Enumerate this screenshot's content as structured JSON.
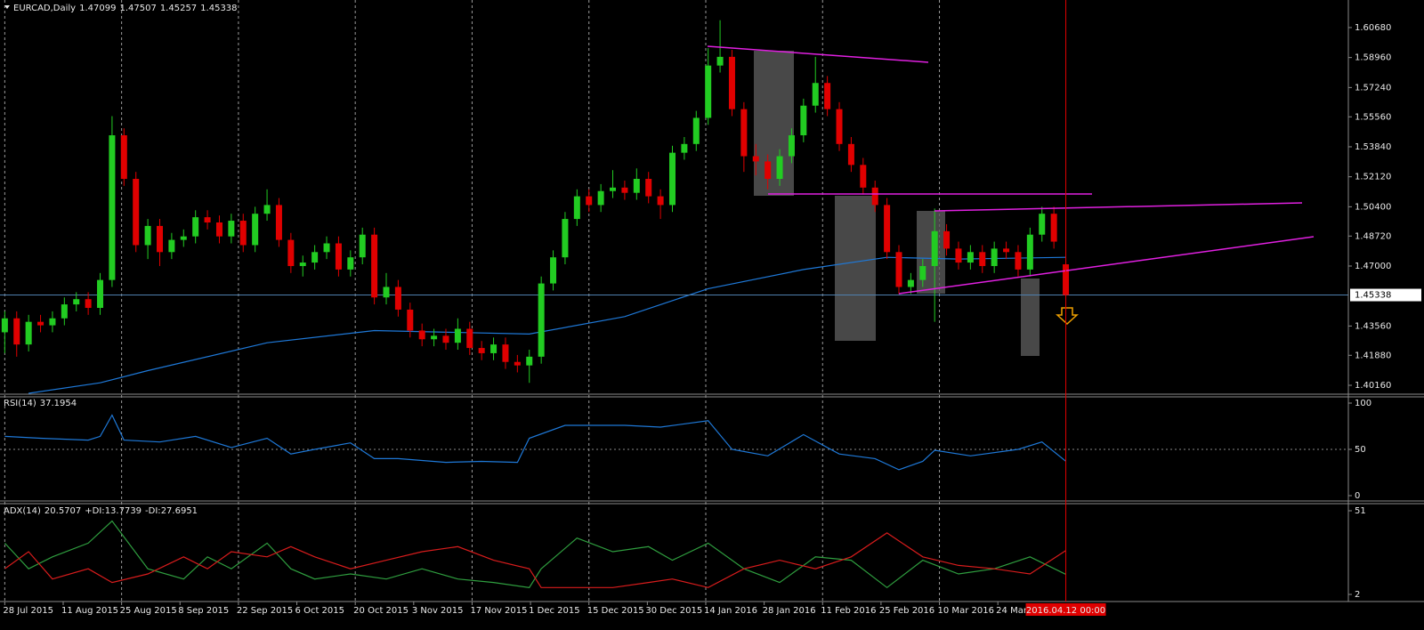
{
  "chart_data": [
    {
      "type": "candlestick",
      "title": "EURCAD,Daily",
      "open": [
        1.432,
        1.44,
        1.425,
        1.438,
        1.436,
        1.44,
        1.448,
        1.451,
        1.446,
        1.462,
        1.545,
        1.52,
        1.482,
        1.493,
        1.478,
        1.485,
        1.487,
        1.498,
        1.495,
        1.487,
        1.496,
        1.482,
        1.5,
        1.505,
        1.485,
        1.47,
        1.472,
        1.478,
        1.483,
        1.468,
        1.475,
        1.488,
        1.452,
        1.458,
        1.445,
        1.433,
        1.428,
        1.43,
        1.426,
        1.434,
        1.423,
        1.42,
        1.425,
        1.415,
        1.413,
        1.418,
        1.46,
        1.475,
        1.497,
        1.51,
        1.505,
        1.513,
        1.515,
        1.512,
        1.52,
        1.51,
        1.505,
        1.535,
        1.54,
        1.555,
        1.585,
        1.59,
        1.56,
        1.533,
        1.53,
        1.52,
        1.533,
        1.545,
        1.562,
        1.575,
        1.56,
        1.54,
        1.528,
        1.515,
        1.505,
        1.478,
        1.458,
        1.462,
        1.47,
        1.49,
        1.48,
        1.472,
        1.478,
        1.47,
        1.48,
        1.478,
        1.468,
        1.488,
        1.5,
        1.47099
      ],
      "high": [
        1.444,
        1.444,
        1.442,
        1.442,
        1.444,
        1.452,
        1.455,
        1.455,
        1.466,
        1.556,
        1.549,
        1.524,
        1.497,
        1.497,
        1.489,
        1.491,
        1.502,
        1.502,
        1.499,
        1.5,
        1.5,
        1.504,
        1.514,
        1.509,
        1.489,
        1.476,
        1.482,
        1.487,
        1.487,
        1.479,
        1.492,
        1.492,
        1.466,
        1.462,
        1.449,
        1.437,
        1.434,
        1.434,
        1.44,
        1.438,
        1.427,
        1.429,
        1.429,
        1.419,
        1.422,
        1.464,
        1.479,
        1.501,
        1.514,
        1.514,
        1.517,
        1.525,
        1.519,
        1.526,
        1.524,
        1.514,
        1.539,
        1.544,
        1.559,
        1.595,
        1.611,
        1.594,
        1.564,
        1.54,
        1.534,
        1.537,
        1.549,
        1.566,
        1.59,
        1.579,
        1.564,
        1.544,
        1.532,
        1.519,
        1.509,
        1.482,
        1.466,
        1.474,
        1.503,
        1.494,
        1.484,
        1.482,
        1.482,
        1.484,
        1.484,
        1.482,
        1.492,
        1.504,
        1.504,
        1.47507
      ],
      "low": [
        1.42,
        1.418,
        1.421,
        1.432,
        1.432,
        1.436,
        1.444,
        1.442,
        1.442,
        1.458,
        1.516,
        1.478,
        1.474,
        1.47,
        1.474,
        1.481,
        1.483,
        1.491,
        1.483,
        1.483,
        1.478,
        1.478,
        1.496,
        1.481,
        1.466,
        1.464,
        1.468,
        1.474,
        1.464,
        1.464,
        1.471,
        1.448,
        1.448,
        1.441,
        1.429,
        1.424,
        1.424,
        1.422,
        1.422,
        1.419,
        1.416,
        1.416,
        1.411,
        1.409,
        1.403,
        1.414,
        1.456,
        1.471,
        1.493,
        1.501,
        1.501,
        1.509,
        1.508,
        1.508,
        1.506,
        1.497,
        1.501,
        1.531,
        1.536,
        1.551,
        1.581,
        1.556,
        1.524,
        1.522,
        1.514,
        1.516,
        1.529,
        1.541,
        1.558,
        1.556,
        1.536,
        1.524,
        1.511,
        1.501,
        1.474,
        1.454,
        1.454,
        1.458,
        1.438,
        1.476,
        1.468,
        1.468,
        1.466,
        1.466,
        1.474,
        1.464,
        1.464,
        1.484,
        1.48,
        1.45257
      ],
      "close": [
        1.44,
        1.425,
        1.438,
        1.436,
        1.44,
        1.448,
        1.451,
        1.446,
        1.462,
        1.545,
        1.52,
        1.482,
        1.493,
        1.478,
        1.485,
        1.487,
        1.498,
        1.495,
        1.487,
        1.496,
        1.482,
        1.5,
        1.505,
        1.485,
        1.47,
        1.472,
        1.478,
        1.483,
        1.468,
        1.475,
        1.488,
        1.452,
        1.458,
        1.445,
        1.433,
        1.428,
        1.43,
        1.426,
        1.434,
        1.423,
        1.42,
        1.425,
        1.415,
        1.413,
        1.418,
        1.46,
        1.475,
        1.497,
        1.51,
        1.505,
        1.513,
        1.515,
        1.512,
        1.52,
        1.51,
        1.505,
        1.535,
        1.54,
        1.555,
        1.585,
        1.59,
        1.56,
        1.533,
        1.53,
        1.52,
        1.533,
        1.545,
        1.562,
        1.575,
        1.56,
        1.54,
        1.528,
        1.515,
        1.505,
        1.478,
        1.458,
        1.462,
        1.47,
        1.49,
        1.48,
        1.472,
        1.478,
        1.47,
        1.48,
        1.478,
        1.468,
        1.488,
        1.5,
        1.484,
        1.45338
      ],
      "up_color": "#22cc22",
      "down_color": "#e00000",
      "moving_average": {
        "color": "#1e78d7",
        "x": [
          2,
          8,
          12,
          22,
          31,
          44,
          52,
          59,
          67,
          74,
          80,
          89
        ],
        "values": [
          1.397,
          1.403,
          1.41,
          1.426,
          1.433,
          1.431,
          1.441,
          1.457,
          1.468,
          1.475,
          1.474,
          1.475
        ]
      },
      "price_line_color": "#4f7fae",
      "ylim": [
        1.397,
        1.6226
      ],
      "yticks": [
        {
          "value": 1.4016,
          "label": "1.40160"
        },
        {
          "value": 1.4188,
          "label": "1.41880"
        },
        {
          "value": 1.4356,
          "label": "1.43560"
        },
        {
          "value": 1.47,
          "label": "1.47000"
        },
        {
          "value": 1.4872,
          "label": "1.48720"
        },
        {
          "value": 1.504,
          "label": "1.50400"
        },
        {
          "value": 1.5212,
          "label": "1.52120"
        },
        {
          "value": 1.5384,
          "label": "1.53840"
        },
        {
          "value": 1.5556,
          "label": "1.55560"
        },
        {
          "value": 1.5724,
          "label": "1.57240"
        },
        {
          "value": 1.5896,
          "label": "1.58960"
        },
        {
          "value": 1.6068,
          "label": "1.60680"
        }
      ],
      "xlim": [
        -0.4,
        112.7
      ],
      "xticks": [
        {
          "value": 0,
          "label": "28 Jul 2015"
        },
        {
          "value": 4.9,
          "label": "11 Aug 2015"
        },
        {
          "value": 9.8,
          "label": "25 Aug 2015"
        },
        {
          "value": 14.7,
          "label": "8 Sep 2015"
        },
        {
          "value": 19.6,
          "label": "22 Sep 2015"
        },
        {
          "value": 24.5,
          "label": "6 Oct 2015"
        },
        {
          "value": 29.4,
          "label": "20 Oct 2015"
        },
        {
          "value": 34.3,
          "label": "3 Nov 2015"
        },
        {
          "value": 39.2,
          "label": "17 Nov 2015"
        },
        {
          "value": 44.1,
          "label": "1 Dec 2015"
        },
        {
          "value": 49,
          "label": "15 Dec 2015"
        },
        {
          "value": 53.9,
          "label": "30 Dec 2015"
        },
        {
          "value": 58.8,
          "label": "14 Jan 2016"
        },
        {
          "value": 63.7,
          "label": "28 Jan 2016"
        },
        {
          "value": 68.6,
          "label": "11 Feb 2016"
        },
        {
          "value": 73.5,
          "label": "25 Feb 2016"
        },
        {
          "value": 78.4,
          "label": "10 Mar 2016"
        },
        {
          "value": 83.3,
          "label": "24 Mar 2016"
        }
      ],
      "grid": true,
      "crosshair_label": "2016.04.12 00:00"
    },
    {
      "type": "line",
      "title": "RSI(14)",
      "color": "#1e78d7",
      "x": [
        0,
        3,
        7,
        8,
        9,
        10,
        13,
        16,
        19,
        22,
        24,
        26,
        29,
        31,
        33,
        37,
        40,
        43,
        44,
        47,
        52,
        55,
        59,
        61,
        64,
        67,
        70,
        73,
        75,
        77,
        78,
        81,
        85,
        87,
        89
      ],
      "values": [
        64,
        62,
        60,
        64,
        87,
        60,
        58,
        64,
        52,
        62,
        45,
        50,
        57,
        40,
        40,
        36,
        37,
        36,
        62,
        76,
        76,
        74,
        81,
        50,
        43,
        66,
        45,
        40,
        28,
        37,
        49,
        43,
        50,
        58,
        37.1954
      ],
      "ylim": [
        0,
        100
      ],
      "yticks": [
        0,
        50,
        100
      ]
    },
    {
      "type": "line",
      "title": "ADX(14)",
      "adx": 20.5707,
      "x": [
        0,
        2,
        4,
        7,
        9,
        12,
        15,
        17,
        19,
        22,
        24,
        26,
        29,
        32,
        35,
        38,
        41,
        44,
        45,
        48,
        51,
        54,
        56,
        59,
        62,
        65,
        68,
        71,
        74,
        77,
        80,
        83,
        86,
        89
      ],
      "series": [
        {
          "name": "+DI:",
          "color": "#2f9e3f",
          "values": [
            32,
            17,
            24,
            32,
            45,
            17,
            11,
            24,
            17,
            32,
            17,
            11,
            14,
            11,
            17,
            11,
            9,
            6,
            17,
            35,
            27,
            30,
            22,
            32,
            17,
            9,
            24,
            22,
            6,
            22,
            14,
            17,
            24,
            13.7739
          ]
        },
        {
          "name": "-DI:",
          "color": "#d81c1c",
          "values": [
            17,
            27,
            11,
            17,
            9,
            14,
            24,
            17,
            27,
            24,
            30,
            24,
            17,
            22,
            27,
            30,
            22,
            17,
            6,
            6,
            6,
            9,
            11,
            6,
            17,
            22,
            17,
            24,
            38,
            24,
            19,
            17,
            14,
            27.6951
          ]
        }
      ],
      "ylim": [
        2,
        51
      ],
      "yticks": [
        2,
        51
      ]
    }
  ]
}
